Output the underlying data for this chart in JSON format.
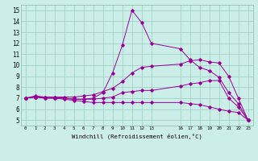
{
  "xlabel": "Windchill (Refroidissement éolien,°C)",
  "ylabel": "",
  "bg_color": "#cceee8",
  "line_color": "#990099",
  "xlim": [
    -0.5,
    23.5
  ],
  "ylim": [
    4.5,
    15.5
  ],
  "xticks": [
    0,
    1,
    2,
    3,
    4,
    5,
    6,
    7,
    8,
    9,
    10,
    11,
    12,
    13,
    16,
    17,
    18,
    19,
    20,
    21,
    22,
    23
  ],
  "yticks": [
    5,
    6,
    7,
    8,
    9,
    10,
    11,
    12,
    13,
    14,
    15
  ],
  "lines": [
    {
      "x": [
        0,
        1,
        2,
        3,
        4,
        5,
        6,
        7,
        8,
        9,
        10,
        11,
        12,
        13,
        16,
        17,
        18,
        19,
        20,
        21,
        22,
        23
      ],
      "y": [
        7.0,
        7.1,
        7.0,
        7.0,
        6.9,
        6.8,
        6.7,
        6.6,
        6.6,
        6.6,
        6.6,
        6.6,
        6.6,
        6.6,
        6.6,
        6.5,
        6.4,
        6.2,
        6.0,
        5.8,
        5.7,
        5.0
      ]
    },
    {
      "x": [
        0,
        1,
        2,
        3,
        4,
        5,
        6,
        7,
        8,
        9,
        10,
        11,
        12,
        13,
        16,
        17,
        18,
        19,
        20,
        21,
        22,
        23
      ],
      "y": [
        7.0,
        7.1,
        7.0,
        7.0,
        7.0,
        6.9,
        6.9,
        6.9,
        7.0,
        7.1,
        7.5,
        7.6,
        7.7,
        7.7,
        8.1,
        8.3,
        8.4,
        8.6,
        8.6,
        7.0,
        6.2,
        5.0
      ]
    },
    {
      "x": [
        0,
        1,
        2,
        3,
        4,
        5,
        6,
        7,
        8,
        9,
        10,
        11,
        12,
        13,
        16,
        17,
        18,
        19,
        20,
        21,
        22,
        23
      ],
      "y": [
        7.0,
        7.1,
        7.1,
        7.1,
        7.1,
        7.1,
        7.2,
        7.3,
        7.6,
        7.9,
        8.5,
        9.3,
        9.8,
        9.9,
        10.1,
        10.4,
        10.5,
        10.3,
        10.2,
        9.0,
        7.0,
        5.0
      ]
    },
    {
      "x": [
        0,
        1,
        2,
        3,
        4,
        5,
        6,
        7,
        8,
        9,
        10,
        11,
        12,
        13,
        16,
        17,
        18,
        19,
        20,
        21,
        22,
        23
      ],
      "y": [
        7.0,
        7.2,
        7.1,
        7.1,
        7.0,
        6.9,
        6.9,
        7.0,
        7.5,
        9.3,
        11.8,
        15.0,
        13.9,
        12.0,
        11.5,
        10.5,
        9.8,
        9.5,
        8.9,
        7.5,
        6.5,
        5.0
      ]
    }
  ]
}
